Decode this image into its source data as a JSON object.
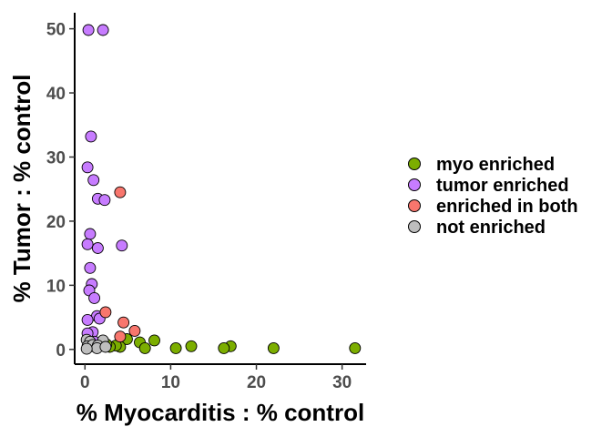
{
  "chart_data": {
    "type": "scatter",
    "xlabel": "% Myocarditis : % control",
    "ylabel": "% Tumor : % control",
    "xlim": [
      -1.2,
      32.8
    ],
    "ylim": [
      -2.3,
      52.5
    ],
    "xticks": [
      0,
      10,
      20,
      30
    ],
    "yticks": [
      0,
      10,
      20,
      30,
      40,
      50
    ],
    "grid": false,
    "legend_position": "right",
    "series": [
      {
        "name": "myo enriched",
        "color": "#7CAE00",
        "points": [
          [
            31.5,
            0.2
          ],
          [
            22.0,
            0.2
          ],
          [
            17.0,
            0.5
          ],
          [
            16.2,
            0.2
          ],
          [
            12.4,
            0.5
          ],
          [
            10.6,
            0.2
          ],
          [
            8.1,
            1.4
          ],
          [
            6.4,
            1.1
          ],
          [
            7.0,
            0.2
          ],
          [
            4.9,
            1.6
          ],
          [
            4.1,
            0.4
          ],
          [
            3.6,
            0.6
          ],
          [
            2.9,
            0.4
          ],
          [
            2.5,
            0.8
          ],
          [
            2.1,
            0.6
          ]
        ]
      },
      {
        "name": "tumor enriched",
        "color": "#C77CFF",
        "points": [
          [
            0.4,
            49.8
          ],
          [
            2.1,
            49.8
          ],
          [
            0.7,
            33.2
          ],
          [
            0.3,
            28.4
          ],
          [
            1.0,
            26.4
          ],
          [
            1.5,
            23.5
          ],
          [
            2.3,
            23.3
          ],
          [
            0.6,
            18.0
          ],
          [
            0.3,
            16.4
          ],
          [
            1.5,
            15.8
          ],
          [
            4.3,
            16.2
          ],
          [
            0.6,
            12.7
          ],
          [
            0.8,
            10.2
          ],
          [
            0.5,
            9.2
          ],
          [
            1.1,
            8.0
          ],
          [
            1.4,
            5.2
          ],
          [
            1.7,
            4.8
          ],
          [
            0.3,
            4.6
          ],
          [
            0.9,
            2.7
          ],
          [
            0.3,
            2.5
          ],
          [
            1.1,
            1.2
          ],
          [
            0.7,
            0.5
          ]
        ]
      },
      {
        "name": "enriched in both",
        "color": "#F8766D",
        "points": [
          [
            4.1,
            24.5
          ],
          [
            2.4,
            5.8
          ],
          [
            4.5,
            4.2
          ],
          [
            5.8,
            2.9
          ],
          [
            4.1,
            2.0
          ]
        ]
      },
      {
        "name": "not enriched",
        "color": "#BEBEBE",
        "points": [
          [
            0.2,
            1.5
          ],
          [
            0.6,
            1.2
          ],
          [
            2.1,
            1.4
          ],
          [
            0.3,
            0.5
          ],
          [
            0.9,
            0.7
          ],
          [
            1.5,
            0.6
          ],
          [
            1.4,
            0.2
          ],
          [
            0.2,
            0.1
          ],
          [
            2.4,
            0.4
          ]
        ]
      }
    ]
  }
}
